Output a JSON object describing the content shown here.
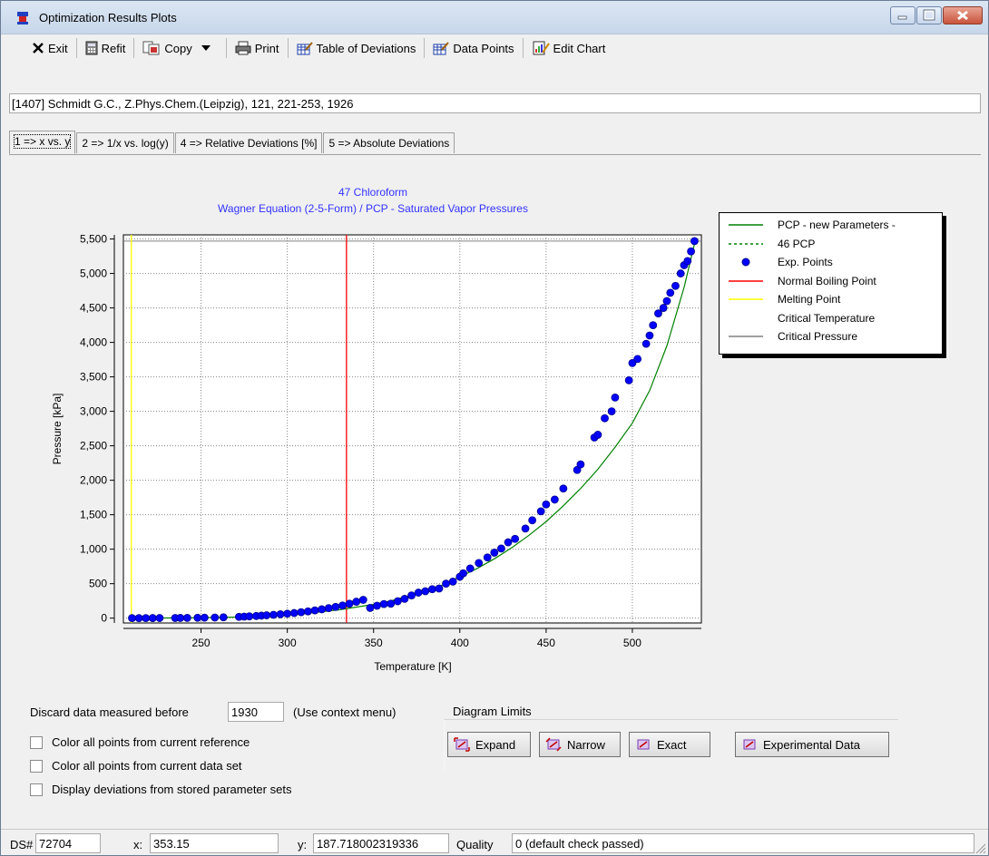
{
  "window": {
    "title": "Optimization Results Plots"
  },
  "toolbar": {
    "exit": "Exit",
    "refit": "Refit",
    "copy": "Copy",
    "print": "Print",
    "table_of_deviations": "Table of Deviations",
    "data_points": "Data Points",
    "edit_chart": "Edit Chart"
  },
  "reference": "[1407] Schmidt G.C., Z.Phys.Chem.(Leipzig), 121, 221-253, 1926",
  "tabs": [
    {
      "label": "1 => x vs. y"
    },
    {
      "label": "2 => 1/x vs. log(y)"
    },
    {
      "label": "4 => Relative Deviations [%]"
    },
    {
      "label": "5 => Absolute Deviations"
    }
  ],
  "legend": [
    {
      "label": "PCP - new Parameters -",
      "style": "solid",
      "color": "#008000"
    },
    {
      "label": "46 PCP",
      "style": "dashed",
      "color": "#008000"
    },
    {
      "label": "Exp. Points",
      "style": "marker",
      "color": "#0000ff"
    },
    {
      "label": "Normal Boiling Point",
      "style": "solid",
      "color": "#ff0000"
    },
    {
      "label": "Melting Point",
      "style": "solid",
      "color": "#ffff00"
    },
    {
      "label": "Critical Temperature",
      "style": "none",
      "color": "#ffffff"
    },
    {
      "label": "Critical Pressure",
      "style": "solid",
      "color": "#808080"
    }
  ],
  "chart_data": {
    "type": "scatter",
    "title": "47 Chloroform",
    "subtitle": "Wagner Equation (2-5-Form) / PCP - Saturated Vapor Pressures",
    "xlabel": "Temperature [K]",
    "ylabel": "Pressure [kPa]",
    "xlim": [
      205,
      540
    ],
    "ylim": [
      -70,
      5560
    ],
    "xticks": [
      250,
      300,
      350,
      400,
      450,
      500
    ],
    "xtick_labels": [
      "250",
      "300",
      "350",
      "400",
      "450",
      "500"
    ],
    "yticks": [
      0,
      500,
      1000,
      1500,
      2000,
      2500,
      3000,
      3500,
      4000,
      4500,
      5000,
      5500
    ],
    "ytick_labels": [
      "0",
      "500",
      "1,000",
      "1,500",
      "2,000",
      "2,500",
      "3,000",
      "3,500",
      "4,000",
      "4,500",
      "5,000",
      "5,500"
    ],
    "grid": true,
    "vlines": [
      {
        "name": "Normal Boiling Point",
        "x": 334.3,
        "color": "#ff0000"
      },
      {
        "name": "Melting Point",
        "x": 209.6,
        "color": "#ffff00"
      }
    ],
    "hlines": [
      {
        "name": "Critical Pressure",
        "y": 5470,
        "color": "#808080"
      }
    ],
    "curve": {
      "name": "PCP - new Parameters -",
      "color": "#008000",
      "x": [
        210,
        230,
        250,
        270,
        290,
        310,
        330,
        350,
        360,
        370,
        380,
        390,
        400,
        410,
        420,
        430,
        440,
        450,
        460,
        470,
        480,
        490,
        500,
        510,
        520,
        530,
        536.4
      ],
      "y": [
        0.5,
        2,
        6,
        15,
        33,
        66,
        120,
        200,
        250,
        320,
        395,
        480,
        600,
        720,
        860,
        1020,
        1200,
        1400,
        1630,
        1880,
        2160,
        2480,
        2830,
        3300,
        3950,
        4800,
        5470
      ]
    },
    "series": [
      {
        "name": "Exp. Points",
        "color": "#0000ff",
        "x": [
          210,
          214,
          218,
          222,
          226,
          235,
          238,
          242,
          248,
          252,
          258,
          263,
          272,
          275,
          278,
          282,
          285,
          288,
          292,
          296,
          300,
          304,
          308,
          312,
          316,
          320,
          324,
          328,
          332,
          336,
          340,
          344,
          348,
          352,
          356,
          360,
          364,
          368,
          372,
          376,
          380,
          384,
          388,
          392,
          396,
          400,
          402,
          406,
          411,
          416,
          420,
          424,
          428,
          432,
          438,
          442,
          447,
          450,
          455,
          460,
          468,
          470,
          478,
          480,
          484,
          488,
          490,
          498,
          500,
          503,
          508,
          510,
          512,
          515,
          518,
          520,
          522,
          525,
          528,
          530,
          532,
          534,
          536
        ],
        "y": [
          0.6,
          0.8,
          1,
          1.3,
          1.6,
          2.7,
          3.2,
          4,
          5.5,
          7,
          9,
          12,
          19,
          22,
          26,
          31,
          36,
          41,
          48,
          56,
          64,
          74,
          86,
          98,
          113,
          128,
          145,
          163,
          183,
          210,
          238,
          265,
          148,
          180,
          205,
          210,
          245,
          280,
          330,
          370,
          390,
          420,
          430,
          500,
          530,
          600,
          650,
          720,
          800,
          880,
          950,
          1010,
          1100,
          1150,
          1300,
          1420,
          1550,
          1650,
          1720,
          1880,
          2150,
          2230,
          2620,
          2660,
          2900,
          3000,
          3200,
          3450,
          3700,
          3760,
          3980,
          4100,
          4250,
          4420,
          4500,
          4600,
          4720,
          4820,
          5000,
          5120,
          5180,
          5320,
          5470
        ]
      }
    ]
  },
  "controls": {
    "discard_label": "Discard data measured before",
    "discard_value": "1930",
    "discard_hint": "(Use context menu)",
    "checkboxes": [
      {
        "label": "Color all points from current reference",
        "checked": false
      },
      {
        "label": "Color all points from current data set",
        "checked": false
      },
      {
        "label": "Display deviations from stored parameter sets",
        "checked": false
      }
    ],
    "limits_title": "Diagram Limits",
    "expand": "Expand",
    "narrow": "Narrow",
    "exact": "Exact",
    "experimental": "Experimental Data"
  },
  "status": {
    "ds_label": "DS#",
    "ds_value": "72704",
    "x_label": "x:",
    "x_value": "353.15",
    "y_label": "y:",
    "y_value": "187.718002319336",
    "quality_label": "Quality",
    "quality_value": "0 (default check passed)"
  }
}
